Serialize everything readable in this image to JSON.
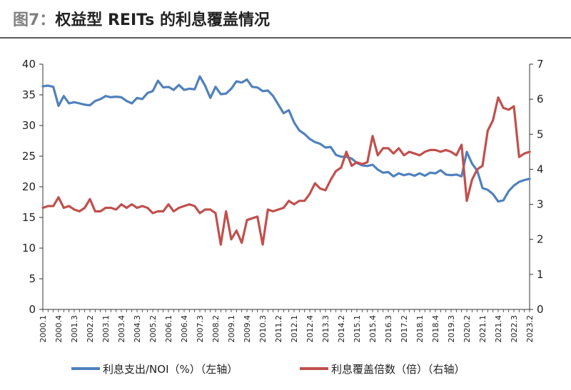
{
  "header": {
    "figure_no": "图7：",
    "title": "权益型 REITs 的利息覆盖情况"
  },
  "chart_data": {
    "type": "line",
    "title": "权益型 REITs 的利息覆盖情况",
    "x": [
      "2000.1",
      "2000.2",
      "2000.3",
      "2000.4",
      "2001.1",
      "2001.2",
      "2001.3",
      "2001.4",
      "2002.1",
      "2002.2",
      "2002.3",
      "2002.4",
      "2003.1",
      "2003.2",
      "2003.3",
      "2003.4",
      "2004.1",
      "2004.2",
      "2004.3",
      "2004.4",
      "2005.1",
      "2005.2",
      "2005.3",
      "2005.4",
      "2006.1",
      "2006.2",
      "2006.3",
      "2006.4",
      "2007.1",
      "2007.2",
      "2007.3",
      "2007.4",
      "2008.1",
      "2008.2",
      "2008.3",
      "2008.4",
      "2009.1",
      "2009.2",
      "2009.3",
      "2009.4",
      "2010.1",
      "2010.2",
      "2010.3",
      "2010.4",
      "2011.1",
      "2011.2",
      "2011.3",
      "2011.4",
      "2012.1",
      "2012.2",
      "2012.3",
      "2012.4",
      "2013.1",
      "2013.2",
      "2013.3",
      "2013.4",
      "2014.1",
      "2014.2",
      "2014.3",
      "2014.4",
      "2015.1",
      "2015.2",
      "2015.3",
      "2015.4",
      "2016.1",
      "2016.2",
      "2016.3",
      "2016.4",
      "2017.1",
      "2017.2",
      "2017.3",
      "2017.4",
      "2018.1",
      "2018.2",
      "2018.3",
      "2018.4",
      "2019.1",
      "2019.2",
      "2019.3",
      "2019.4",
      "2020.1",
      "2020.2",
      "2020.3",
      "2020.4",
      "2021.1",
      "2021.2",
      "2021.3",
      "2021.4",
      "2022.1",
      "2022.2",
      "2022.3",
      "2022.4",
      "2023.1",
      "2023.2"
    ],
    "x_tick_labels": [
      "2000.1",
      "2000.4",
      "2001.3",
      "2002.2",
      "2003.1",
      "2003.4",
      "2004.3",
      "2005.2",
      "2006.1",
      "2006.4",
      "2007.3",
      "2008.2",
      "2009.1",
      "2009.4",
      "2010.3",
      "2011.2",
      "2012.1",
      "2012.4",
      "2013.3",
      "2014.2",
      "2015.1",
      "2015.4",
      "2016.3",
      "2017.2",
      "2018.1",
      "2018.4",
      "2019.3",
      "2020.2",
      "2021.1",
      "2021.4",
      "2022.3",
      "2023.2"
    ],
    "y_left": {
      "ylim": [
        0,
        40
      ],
      "ticks": [
        0,
        5,
        10,
        15,
        20,
        25,
        30,
        35,
        40
      ]
    },
    "y_right": {
      "ylim": [
        0,
        7
      ],
      "ticks": [
        0,
        1,
        2,
        3,
        4,
        5,
        6,
        7
      ]
    },
    "grid": false,
    "legend_position": "bottom",
    "series": [
      {
        "name": "利息支出/NOI（%）（左轴）",
        "axis": "left",
        "color": "#4f81bd",
        "values": [
          36.4,
          36.5,
          36.3,
          33.2,
          34.8,
          33.6,
          33.8,
          33.6,
          33.4,
          33.3,
          34.0,
          34.3,
          34.8,
          34.6,
          34.7,
          34.6,
          34.0,
          33.6,
          34.5,
          34.3,
          35.3,
          35.6,
          37.3,
          36.2,
          36.3,
          35.8,
          36.6,
          35.8,
          36.0,
          35.9,
          38.0,
          36.5,
          34.5,
          36.3,
          35.1,
          35.2,
          36.0,
          37.2,
          37.0,
          37.5,
          36.3,
          36.2,
          35.6,
          35.7,
          34.8,
          33.4,
          32.0,
          32.5,
          30.5,
          29.2,
          28.6,
          27.8,
          27.3,
          27.0,
          26.4,
          26.5,
          25.2,
          24.9,
          24.9,
          24.6,
          23.9,
          23.5,
          23.4,
          23.6,
          22.8,
          22.3,
          22.4,
          21.7,
          22.2,
          21.9,
          22.1,
          21.8,
          22.2,
          21.8,
          22.3,
          22.2,
          22.7,
          22.0,
          21.9,
          22.0,
          21.7,
          25.7,
          23.8,
          22.6,
          19.8,
          19.5,
          18.8,
          17.6,
          17.8,
          19.3,
          20.2,
          20.8,
          21.1,
          21.3
        ]
      },
      {
        "name": "利息覆盖倍数（倍）（右轴）",
        "axis": "right",
        "color": "#c0504d",
        "values": [
          2.9,
          2.95,
          2.95,
          3.2,
          2.9,
          2.95,
          2.85,
          2.8,
          2.9,
          3.15,
          2.8,
          2.8,
          2.9,
          2.9,
          2.85,
          3.0,
          2.9,
          3.0,
          2.9,
          2.95,
          2.9,
          2.75,
          2.8,
          2.8,
          3.0,
          2.8,
          2.9,
          2.95,
          3.0,
          2.95,
          2.75,
          2.85,
          2.85,
          2.75,
          1.85,
          2.8,
          2.0,
          2.25,
          1.9,
          2.55,
          2.6,
          2.65,
          1.85,
          2.85,
          2.8,
          2.85,
          2.9,
          3.1,
          3.0,
          3.1,
          3.1,
          3.3,
          3.6,
          3.45,
          3.4,
          3.7,
          3.95,
          4.05,
          4.5,
          4.1,
          4.2,
          4.15,
          4.2,
          4.95,
          4.4,
          4.6,
          4.6,
          4.45,
          4.6,
          4.4,
          4.5,
          4.45,
          4.4,
          4.5,
          4.55,
          4.55,
          4.5,
          4.55,
          4.5,
          4.4,
          4.7,
          3.1,
          3.7,
          4.0,
          4.1,
          5.1,
          5.4,
          6.05,
          5.75,
          5.7,
          5.8,
          4.35,
          4.45,
          4.5
        ]
      }
    ]
  }
}
